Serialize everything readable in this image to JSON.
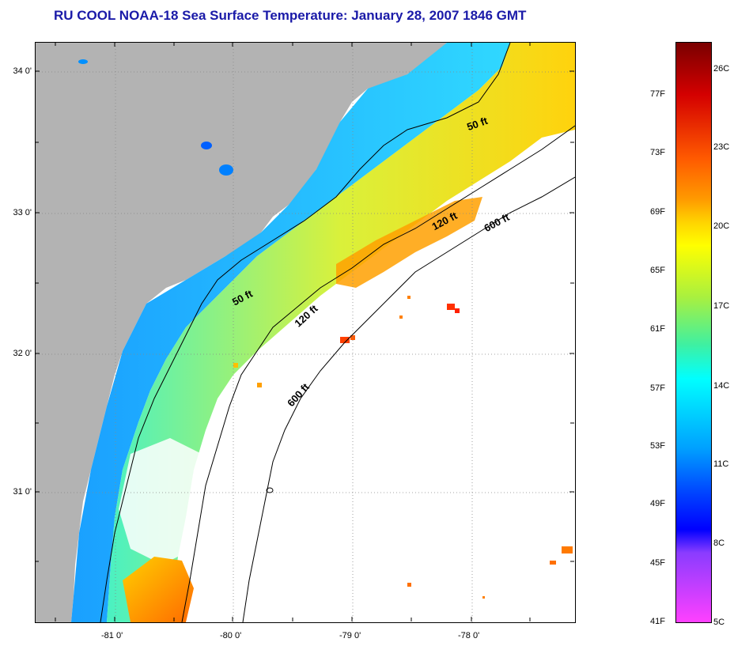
{
  "title": "RU COOL  NOAA-18  Sea Surface Temperature:  January 28, 2007 1846 GMT",
  "map": {
    "latitude_labels": [
      "34 0'",
      "33 0'",
      "32 0'",
      "31 0'"
    ],
    "longitude_labels": [
      "-81 0'",
      "-80 0'",
      "-79 0'",
      "-78 0'"
    ],
    "contour_labels": [
      "50 ft",
      "120 ft",
      "600 ft",
      "50 ft",
      "120 ft",
      "600 ft"
    ],
    "colors": {
      "land": "#b3b3b3",
      "cloud": "#ffffff",
      "contour": "#000000"
    }
  },
  "colorbar": {
    "fahrenheit_labels": [
      "77F",
      "73F",
      "69F",
      "65F",
      "61F",
      "57F",
      "53F",
      "49F",
      "45F",
      "41F"
    ],
    "celsius_labels": [
      "26C",
      "23C",
      "20C",
      "17C",
      "14C",
      "11C",
      "8C",
      "5C"
    ],
    "gradient": [
      "#7a0000",
      "#d40000",
      "#ff5a00",
      "#ff9a00",
      "#ffd400",
      "#ffff00",
      "#a8f040",
      "#40f0a0",
      "#00ffff",
      "#00a0ff",
      "#0040ff",
      "#0000ff",
      "#8a3cff",
      "#ff40ff"
    ]
  }
}
